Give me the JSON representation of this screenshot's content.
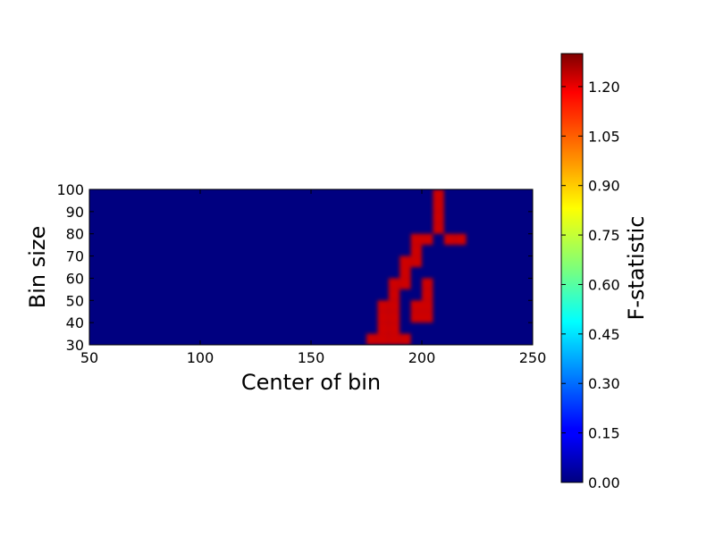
{
  "chart_data": {
    "type": "heatmap",
    "xlabel": "Center of bin",
    "ylabel": "Bin size",
    "xlim": [
      50,
      250
    ],
    "ylim": [
      30,
      100
    ],
    "x_ticks": [
      "50",
      "100",
      "150",
      "200",
      "250"
    ],
    "y_ticks": [
      "30",
      "40",
      "50",
      "60",
      "70",
      "80",
      "90",
      "100"
    ],
    "colorbar": {
      "label": "F-statistic",
      "range": [
        0.0,
        1.3
      ],
      "colormap": "jet",
      "ticks": [
        "0.00",
        "0.15",
        "0.30",
        "0.45",
        "0.60",
        "0.75",
        "0.90",
        "1.05",
        "1.20"
      ]
    },
    "background_value": 0.0,
    "cells": [
      {
        "x": 207.5,
        "y": 97.5,
        "value": 1.2
      },
      {
        "x": 207.5,
        "y": 92.5,
        "value": 1.2
      },
      {
        "x": 207.5,
        "y": 87.5,
        "value": 1.2
      },
      {
        "x": 207.5,
        "y": 82.5,
        "value": 1.2
      },
      {
        "x": 202.5,
        "y": 77.5,
        "value": 1.2
      },
      {
        "x": 197.5,
        "y": 77.5,
        "value": 1.2
      },
      {
        "x": 212.5,
        "y": 77.5,
        "value": 1.2
      },
      {
        "x": 217.5,
        "y": 77.5,
        "value": 1.2
      },
      {
        "x": 197.5,
        "y": 72.5,
        "value": 1.2
      },
      {
        "x": 192.5,
        "y": 67.5,
        "value": 1.2
      },
      {
        "x": 197.5,
        "y": 67.5,
        "value": 1.2
      },
      {
        "x": 192.5,
        "y": 62.5,
        "value": 1.2
      },
      {
        "x": 187.5,
        "y": 57.5,
        "value": 1.2
      },
      {
        "x": 192.5,
        "y": 57.5,
        "value": 1.2
      },
      {
        "x": 202.5,
        "y": 57.5,
        "value": 1.2
      },
      {
        "x": 187.5,
        "y": 52.5,
        "value": 1.2
      },
      {
        "x": 202.5,
        "y": 52.5,
        "value": 1.2
      },
      {
        "x": 182.5,
        "y": 47.5,
        "value": 1.2
      },
      {
        "x": 187.5,
        "y": 47.5,
        "value": 1.2
      },
      {
        "x": 197.5,
        "y": 47.5,
        "value": 1.2
      },
      {
        "x": 202.5,
        "y": 47.5,
        "value": 1.2
      },
      {
        "x": 182.5,
        "y": 42.5,
        "value": 1.2
      },
      {
        "x": 187.5,
        "y": 42.5,
        "value": 1.2
      },
      {
        "x": 197.5,
        "y": 42.5,
        "value": 1.2
      },
      {
        "x": 202.5,
        "y": 42.5,
        "value": 1.2
      },
      {
        "x": 182.5,
        "y": 37.5,
        "value": 1.2
      },
      {
        "x": 187.5,
        "y": 37.5,
        "value": 1.2
      },
      {
        "x": 177.5,
        "y": 32.5,
        "value": 1.2
      },
      {
        "x": 182.5,
        "y": 32.5,
        "value": 1.2
      },
      {
        "x": 187.5,
        "y": 32.5,
        "value": 1.2
      },
      {
        "x": 192.5,
        "y": 32.5,
        "value": 1.2
      }
    ],
    "cell_size": [
      5,
      5
    ]
  }
}
